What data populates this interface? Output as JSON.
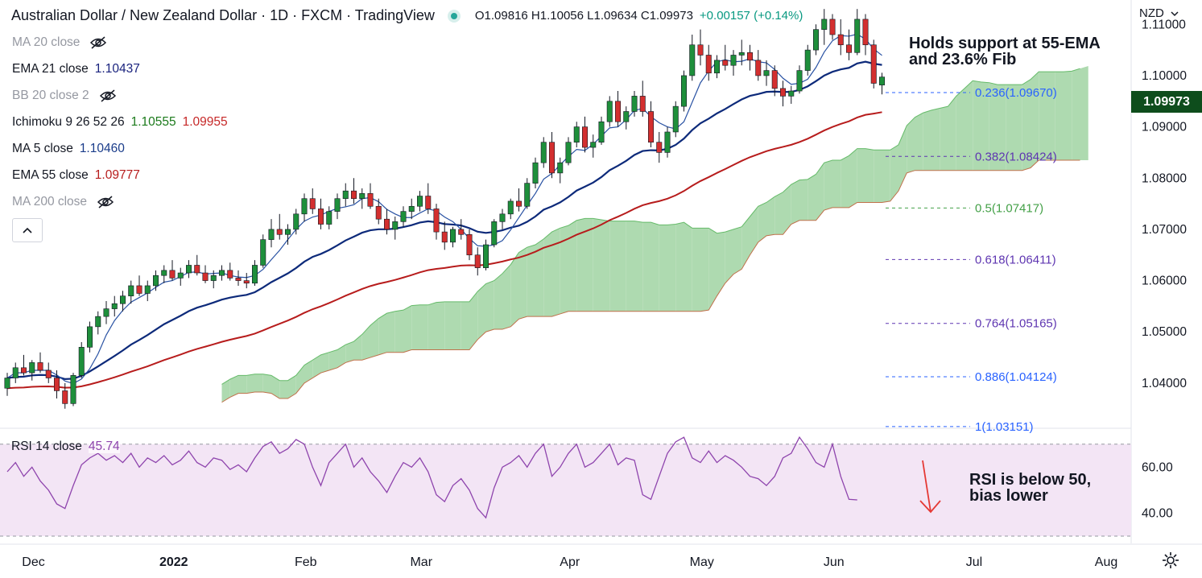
{
  "header": {
    "title": "Australian Dollar / New Zealand Dollar · 1D · FXCM · TradingView",
    "ohlc": "O1.09816 H1.10056 L1.09634 C1.09973",
    "change": "+0.00157 (+0.14%)"
  },
  "legend": [
    {
      "label": "MA 20 close",
      "value": "",
      "hidden": true
    },
    {
      "label": "EMA 21 close",
      "value": "1.10437",
      "value_color": "#1a237e"
    },
    {
      "label": "BB 20 close 2",
      "value": "",
      "hidden": true
    },
    {
      "label": "Ichimoku 9 26 52 26",
      "value": "1.10555",
      "value2": "1.09955",
      "value_color": "#1b7a1b",
      "value2_color": "#c62828"
    },
    {
      "label": "MA 5 close",
      "value": "1.10460",
      "value_color": "#1a3c8a"
    },
    {
      "label": "EMA 55 close",
      "value": "1.09777",
      "value_color": "#b71c1c"
    },
    {
      "label": "MA 200 close",
      "value": "",
      "hidden": true
    }
  ],
  "currency": "NZD",
  "last_price": "1.09973",
  "annotations": {
    "top_line1": "Holds support at 55-EMA",
    "top_line2": "and 23.6% Fib",
    "rsi_line1": "RSI is below 50,",
    "rsi_line2": "bias lower"
  },
  "rsi_legend": {
    "label": "RSI 14 close",
    "value": "45.74"
  },
  "colors": {
    "up": "#1e8f3b",
    "down": "#d32f2f",
    "cloud_bull": "#a5d6a7",
    "cloud_bear": "#ef9a9a",
    "ma5": "#2952a3",
    "ema21": "#0d2a7a",
    "ema55": "#b71c1c",
    "rsi": "#8e44ad",
    "rsi_band": "#f3e5f5"
  },
  "chart_data": {
    "type": "candlestick",
    "price_axis": {
      "min": 1.03151,
      "max": 1.1135,
      "ticks": [
        "1.04000",
        "1.05000",
        "1.06000",
        "1.07000",
        "1.08000",
        "1.09000",
        "1.10000",
        "1.11000"
      ]
    },
    "time_axis": [
      "Dec",
      "2022",
      "Feb",
      "Mar",
      "Apr",
      "May",
      "Jun",
      "Jul",
      "Aug"
    ],
    "fib_levels": [
      {
        "label": "0.236(1.09670)",
        "value": 1.0967,
        "color": "#2962ff"
      },
      {
        "label": "0.382(1.08424)",
        "value": 1.08424,
        "color": "#5e35b1"
      },
      {
        "label": "0.5(1.07417)",
        "value": 1.07417,
        "color": "#43a047"
      },
      {
        "label": "0.618(1.06411)",
        "value": 1.06411,
        "color": "#5e35b1"
      },
      {
        "label": "0.764(1.05165)",
        "value": 1.05165,
        "color": "#5e35b1"
      },
      {
        "label": "0.886(1.04124)",
        "value": 1.04124,
        "color": "#2962ff"
      },
      {
        "label": "1(1.03151)",
        "value": 1.03151,
        "color": "#2962ff"
      }
    ],
    "candles": [
      [
        1.039,
        1.042,
        1.0375,
        1.041
      ],
      [
        1.041,
        1.044,
        1.04,
        1.043
      ],
      [
        1.043,
        1.0455,
        1.0415,
        1.042
      ],
      [
        1.042,
        1.0445,
        1.0405,
        1.044
      ],
      [
        1.044,
        1.046,
        1.042,
        1.0425
      ],
      [
        1.0425,
        1.044,
        1.04,
        1.041
      ],
      [
        1.041,
        1.0425,
        1.037,
        1.0385
      ],
      [
        1.0385,
        1.04,
        1.035,
        1.036
      ],
      [
        1.036,
        1.042,
        1.0355,
        1.0415
      ],
      [
        1.0415,
        1.048,
        1.041,
        1.047
      ],
      [
        1.047,
        1.052,
        1.046,
        1.051
      ],
      [
        1.051,
        1.054,
        1.0495,
        1.053
      ],
      [
        1.053,
        1.056,
        1.0515,
        1.0545
      ],
      [
        1.0545,
        1.057,
        1.053,
        1.0555
      ],
      [
        1.0555,
        1.058,
        1.054,
        1.057
      ],
      [
        1.057,
        1.06,
        1.0555,
        1.059
      ],
      [
        1.059,
        1.061,
        1.057,
        1.0575
      ],
      [
        1.0575,
        1.06,
        1.056,
        1.059
      ],
      [
        1.059,
        1.062,
        1.058,
        1.061
      ],
      [
        1.061,
        1.063,
        1.0595,
        1.062
      ],
      [
        1.062,
        1.064,
        1.06,
        1.0605
      ],
      [
        1.0605,
        1.0625,
        1.059,
        1.0615
      ],
      [
        1.0615,
        1.064,
        1.0605,
        1.063
      ],
      [
        1.063,
        1.065,
        1.061,
        1.0615
      ],
      [
        1.0615,
        1.063,
        1.0595,
        1.06
      ],
      [
        1.06,
        1.062,
        1.0585,
        1.061
      ],
      [
        1.061,
        1.063,
        1.06,
        1.062
      ],
      [
        1.062,
        1.0635,
        1.06,
        1.0605
      ],
      [
        1.0605,
        1.062,
        1.059,
        1.06
      ],
      [
        1.06,
        1.0615,
        1.0585,
        1.0595
      ],
      [
        1.0595,
        1.064,
        1.059,
        1.063
      ],
      [
        1.063,
        1.069,
        1.0625,
        1.068
      ],
      [
        1.068,
        1.072,
        1.0665,
        1.07
      ],
      [
        1.07,
        1.073,
        1.068,
        1.069
      ],
      [
        1.069,
        1.071,
        1.067,
        1.07
      ],
      [
        1.07,
        1.074,
        1.069,
        1.073
      ],
      [
        1.073,
        1.077,
        1.0715,
        1.076
      ],
      [
        1.076,
        1.078,
        1.073,
        1.074
      ],
      [
        1.074,
        1.076,
        1.07,
        1.071
      ],
      [
        1.071,
        1.0745,
        1.07,
        1.0735
      ],
      [
        1.0735,
        1.077,
        1.072,
        1.076
      ],
      [
        1.076,
        1.079,
        1.0745,
        1.0775
      ],
      [
        1.0775,
        1.08,
        1.075,
        1.076
      ],
      [
        1.076,
        1.078,
        1.074,
        1.077
      ],
      [
        1.077,
        1.079,
        1.074,
        1.0745
      ],
      [
        1.0745,
        1.076,
        1.071,
        1.072
      ],
      [
        1.072,
        1.074,
        1.069,
        1.07
      ],
      [
        1.07,
        1.0725,
        1.068,
        1.0715
      ],
      [
        1.0715,
        1.0745,
        1.0705,
        1.0735
      ],
      [
        1.0735,
        1.076,
        1.072,
        1.0745
      ],
      [
        1.0745,
        1.0775,
        1.0735,
        1.0765
      ],
      [
        1.0765,
        1.079,
        1.073,
        1.074
      ],
      [
        1.074,
        1.075,
        1.068,
        1.0695
      ],
      [
        1.0695,
        1.0715,
        1.066,
        1.0675
      ],
      [
        1.0675,
        1.0705,
        1.0665,
        1.07
      ],
      [
        1.07,
        1.072,
        1.068,
        1.069
      ],
      [
        1.069,
        1.07,
        1.064,
        1.065
      ],
      [
        1.065,
        1.0665,
        1.061,
        1.0625
      ],
      [
        1.0625,
        1.068,
        1.062,
        1.067
      ],
      [
        1.067,
        1.072,
        1.0665,
        1.0715
      ],
      [
        1.0715,
        1.074,
        1.07,
        1.073
      ],
      [
        1.073,
        1.076,
        1.072,
        1.0755
      ],
      [
        1.0755,
        1.078,
        1.0735,
        1.0745
      ],
      [
        1.0745,
        1.08,
        1.074,
        1.079
      ],
      [
        1.079,
        1.084,
        1.078,
        1.083
      ],
      [
        1.083,
        1.088,
        1.082,
        1.087
      ],
      [
        1.087,
        1.089,
        1.08,
        1.081
      ],
      [
        1.081,
        1.084,
        1.079,
        1.083
      ],
      [
        1.083,
        1.088,
        1.0825,
        1.087
      ],
      [
        1.087,
        1.091,
        1.086,
        1.09
      ],
      [
        1.09,
        1.092,
        1.085,
        1.086
      ],
      [
        1.086,
        1.0885,
        1.084,
        1.087
      ],
      [
        1.087,
        1.092,
        1.0865,
        1.091
      ],
      [
        1.091,
        1.096,
        1.09,
        1.095
      ],
      [
        1.095,
        1.097,
        1.09,
        1.091
      ],
      [
        1.091,
        1.094,
        1.0895,
        1.093
      ],
      [
        1.093,
        1.097,
        1.092,
        1.096
      ],
      [
        1.096,
        1.099,
        1.092,
        1.093
      ],
      [
        1.093,
        1.095,
        1.086,
        1.087
      ],
      [
        1.087,
        1.089,
        1.083,
        1.085
      ],
      [
        1.085,
        1.09,
        1.084,
        1.089
      ],
      [
        1.089,
        1.095,
        1.088,
        1.094
      ],
      [
        1.094,
        1.101,
        1.093,
        1.1
      ],
      [
        1.1,
        1.108,
        1.099,
        1.106
      ],
      [
        1.106,
        1.109,
        1.102,
        1.104
      ],
      [
        1.104,
        1.106,
        1.099,
        1.1005
      ],
      [
        1.1005,
        1.104,
        1.0995,
        1.103
      ],
      [
        1.103,
        1.106,
        1.101,
        1.102
      ],
      [
        1.102,
        1.105,
        1.1,
        1.104
      ],
      [
        1.104,
        1.107,
        1.102,
        1.1045
      ],
      [
        1.1045,
        1.106,
        1.101,
        1.103
      ],
      [
        1.103,
        1.105,
        1.099,
        1.1
      ],
      [
        1.1,
        1.103,
        1.098,
        1.101
      ],
      [
        1.101,
        1.102,
        1.096,
        1.0975
      ],
      [
        1.0975,
        1.099,
        1.094,
        1.096
      ],
      [
        1.096,
        1.098,
        1.0945,
        1.097
      ],
      [
        1.097,
        1.102,
        1.0965,
        1.101
      ],
      [
        1.101,
        1.106,
        1.1,
        1.105
      ],
      [
        1.105,
        1.11,
        1.104,
        1.109
      ],
      [
        1.109,
        1.113,
        1.106,
        1.111
      ],
      [
        1.111,
        1.112,
        1.107,
        1.108
      ],
      [
        1.108,
        1.111,
        1.104,
        1.106
      ],
      [
        1.106,
        1.109,
        1.103,
        1.1045
      ],
      [
        1.1045,
        1.113,
        1.104,
        1.111
      ],
      [
        1.111,
        1.112,
        1.104,
        1.106
      ],
      [
        1.106,
        1.107,
        1.0975,
        1.0985
      ],
      [
        1.09816,
        1.10056,
        1.09634,
        1.09973
      ]
    ],
    "rsi": {
      "min": 30,
      "max": 72,
      "levels": [
        30,
        70
      ],
      "ticks": [
        "40.00",
        "60.00"
      ],
      "last": 45.74,
      "values": [
        58,
        62,
        56,
        60,
        54,
        50,
        44,
        42,
        52,
        61,
        64,
        66,
        63,
        65,
        62,
        66,
        60,
        64,
        62,
        65,
        61,
        63,
        67,
        62,
        60,
        64,
        63,
        59,
        61,
        58,
        64,
        69,
        71,
        66,
        68,
        72,
        70,
        60,
        52,
        62,
        66,
        70,
        60,
        64,
        58,
        54,
        49,
        56,
        62,
        60,
        64,
        58,
        48,
        45,
        52,
        55,
        50,
        42,
        38,
        51,
        60,
        62,
        65,
        60,
        66,
        70,
        56,
        60,
        66,
        70,
        60,
        62,
        66,
        70,
        61,
        64,
        63,
        48,
        46,
        56,
        66,
        71,
        73,
        64,
        62,
        67,
        62,
        65,
        63,
        60,
        56,
        55,
        52,
        56,
        64,
        66,
        73,
        68,
        62,
        60,
        70,
        56,
        46,
        45.74
      ]
    }
  }
}
